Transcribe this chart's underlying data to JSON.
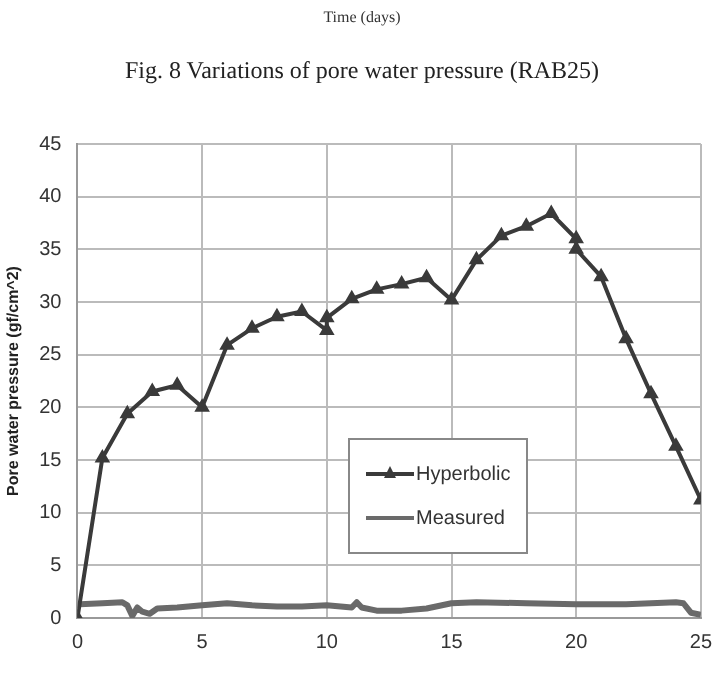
{
  "chart_data": {
    "type": "line",
    "title": "Fig. 8 Variations of pore water pressure (RAB25)",
    "annotations": [
      "Time (days)"
    ],
    "ylabel": "Pore water pressure (gf/cm^2)",
    "xlim": [
      0,
      25
    ],
    "xticks": [
      0,
      5,
      10,
      15,
      20,
      25
    ],
    "ylim": [
      0,
      45
    ],
    "yticks": [
      0,
      5,
      10,
      15,
      20,
      25,
      30,
      35,
      40,
      45
    ],
    "grid": true,
    "legend": "bottom",
    "series": [
      {
        "name": "Hyperbolic",
        "color": "#3a3a3a",
        "marker": "triangle",
        "x": [
          0,
          1,
          2,
          3,
          4,
          5,
          6,
          7,
          8,
          9,
          10,
          10,
          11,
          12,
          13,
          14,
          15,
          16,
          17,
          18,
          19,
          20,
          20,
          21,
          22,
          23,
          24,
          25
        ],
        "values": [
          0,
          15.2,
          19.4,
          21.5,
          22.1,
          20,
          25.9,
          27.5,
          28.6,
          29.1,
          27.3,
          28.5,
          30.3,
          31.2,
          31.7,
          32.3,
          30.2,
          34,
          36.3,
          37.2,
          38.4,
          36,
          35,
          32.4,
          26.5,
          21.3,
          16.3,
          11.2
        ]
      },
      {
        "name": "Measured",
        "color": "#6a6a6a",
        "marker": "none",
        "x": [
          0.1,
          1,
          1.8,
          2,
          2.2,
          2.4,
          2.6,
          2.9,
          3.2,
          4,
          5,
          6,
          7,
          8,
          9,
          10,
          11,
          11.2,
          11.4,
          12,
          13,
          14,
          15,
          16,
          18,
          20,
          22,
          23,
          24,
          24.3,
          24.6,
          25
        ],
        "values": [
          1.3,
          1.4,
          1.5,
          1.2,
          0.2,
          1,
          0.6,
          0.4,
          0.9,
          1,
          1.2,
          1.4,
          1.2,
          1.1,
          1.1,
          1.2,
          1,
          1.5,
          1,
          0.7,
          0.7,
          0.9,
          1.4,
          1.5,
          1.4,
          1.3,
          1.3,
          1.4,
          1.5,
          1.4,
          0.5,
          0.3
        ]
      }
    ]
  }
}
